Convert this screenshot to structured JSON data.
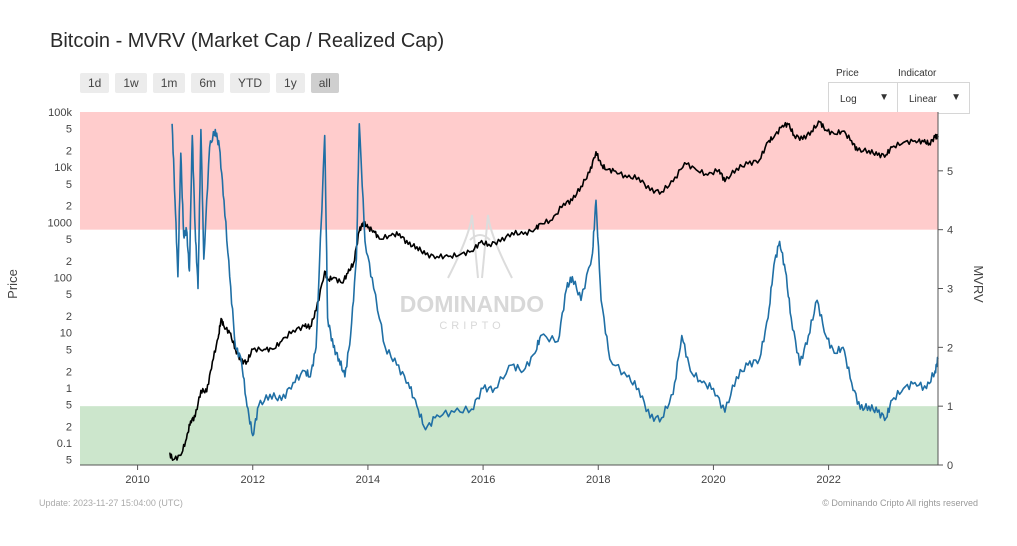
{
  "header": {
    "title": "Bitcoin - MVRV (Market Cap / Realized Cap)"
  },
  "range_buttons": [
    "1d",
    "1w",
    "1m",
    "6m",
    "YTD",
    "1y",
    "all"
  ],
  "active_range": "all",
  "controls": {
    "price": {
      "label": "Price",
      "value": "Log"
    },
    "indicator": {
      "label": "Indicator",
      "value": "Linear"
    }
  },
  "watermark": {
    "name": "DOMINANDO",
    "sub": "CRIPTO"
  },
  "footer": {
    "update": "Update: 2023-11-27 15:04:00 (UTC)",
    "credit": "© Dominando Cripto All rights reserved"
  },
  "colors": {
    "price": "#000000",
    "mvrv": "#1f6fa5",
    "top_band": "#ffcccc",
    "bottom_band": "#cce6cc"
  },
  "chart_data": {
    "type": "line",
    "title": "Bitcoin - MVRV (Market Cap / Realized Cap)",
    "xlabel": "",
    "ylabel_left": "Price",
    "ylabel_right": "MVRV",
    "x_ticks": [
      "2010",
      "2012",
      "2014",
      "2016",
      "2018",
      "2020",
      "2022"
    ],
    "xlim": [
      2009.0,
      2023.9
    ],
    "y_left_scale": "log",
    "y_left_ticks": [
      {
        "v": 100000,
        "t": "100k"
      },
      {
        "v": 50000,
        "t": "5"
      },
      {
        "v": 20000,
        "t": "2"
      },
      {
        "v": 10000,
        "t": "10k"
      },
      {
        "v": 5000,
        "t": "5"
      },
      {
        "v": 2000,
        "t": "2"
      },
      {
        "v": 1000,
        "t": "1000"
      },
      {
        "v": 500,
        "t": "5"
      },
      {
        "v": 200,
        "t": "2"
      },
      {
        "v": 100,
        "t": "100"
      },
      {
        "v": 50,
        "t": "5"
      },
      {
        "v": 20,
        "t": "2"
      },
      {
        "v": 10,
        "t": "10"
      },
      {
        "v": 5,
        "t": "5"
      },
      {
        "v": 2,
        "t": "2"
      },
      {
        "v": 1,
        "t": "1"
      },
      {
        "v": 0.5,
        "t": "5"
      },
      {
        "v": 0.2,
        "t": "2"
      },
      {
        "v": 0.1,
        "t": "0.1"
      },
      {
        "v": 0.05,
        "t": "5"
      }
    ],
    "y_right_ticks": [
      "0",
      "1",
      "2",
      "3",
      "4",
      "5"
    ],
    "y_right_range": [
      0,
      6
    ],
    "bands": [
      {
        "from": 4,
        "to": 6,
        "color": "#ffcccc"
      },
      {
        "from": 0,
        "to": 1,
        "color": "#cce6cc"
      }
    ],
    "series": [
      {
        "name": "Price",
        "axis": "left",
        "points": [
          [
            2010.55,
            0.065
          ],
          [
            2010.62,
            0.05
          ],
          [
            2010.75,
            0.06
          ],
          [
            2010.85,
            0.12
          ],
          [
            2010.92,
            0.25
          ],
          [
            2011.0,
            0.3
          ],
          [
            2011.1,
            0.9
          ],
          [
            2011.2,
            0.85
          ],
          [
            2011.3,
            3
          ],
          [
            2011.4,
            8
          ],
          [
            2011.45,
            18
          ],
          [
            2011.5,
            13
          ],
          [
            2011.6,
            10
          ],
          [
            2011.7,
            5
          ],
          [
            2011.8,
            3
          ],
          [
            2011.9,
            3
          ],
          [
            2012.0,
            5
          ],
          [
            2012.2,
            5
          ],
          [
            2012.35,
            5
          ],
          [
            2012.5,
            7
          ],
          [
            2012.7,
            11
          ],
          [
            2012.9,
            13
          ],
          [
            2013.0,
            13
          ],
          [
            2013.1,
            25
          ],
          [
            2013.25,
            130
          ],
          [
            2013.3,
            90
          ],
          [
            2013.4,
            100
          ],
          [
            2013.55,
            80
          ],
          [
            2013.65,
            120
          ],
          [
            2013.75,
            180
          ],
          [
            2013.85,
            700
          ],
          [
            2013.92,
            1000
          ],
          [
            2014.0,
            800
          ],
          [
            2014.1,
            700
          ],
          [
            2014.2,
            500
          ],
          [
            2014.4,
            580
          ],
          [
            2014.55,
            620
          ],
          [
            2014.7,
            400
          ],
          [
            2014.85,
            360
          ],
          [
            2015.0,
            260
          ],
          [
            2015.2,
            240
          ],
          [
            2015.4,
            240
          ],
          [
            2015.6,
            260
          ],
          [
            2015.8,
            300
          ],
          [
            2015.95,
            430
          ],
          [
            2016.1,
            400
          ],
          [
            2016.3,
            450
          ],
          [
            2016.5,
            650
          ],
          [
            2016.7,
            610
          ],
          [
            2016.9,
            750
          ],
          [
            2017.0,
            950
          ],
          [
            2017.2,
            1100
          ],
          [
            2017.4,
            2200
          ],
          [
            2017.55,
            2500
          ],
          [
            2017.7,
            4500
          ],
          [
            2017.85,
            8000
          ],
          [
            2017.96,
            19000
          ],
          [
            2018.05,
            11000
          ],
          [
            2018.15,
            9000
          ],
          [
            2018.3,
            8500
          ],
          [
            2018.5,
            6500
          ],
          [
            2018.7,
            6500
          ],
          [
            2018.9,
            3800
          ],
          [
            2019.1,
            3600
          ],
          [
            2019.3,
            5500
          ],
          [
            2019.5,
            12000
          ],
          [
            2019.7,
            9000
          ],
          [
            2019.9,
            7200
          ],
          [
            2020.1,
            9000
          ],
          [
            2020.2,
            5500
          ],
          [
            2020.4,
            9500
          ],
          [
            2020.6,
            11500
          ],
          [
            2020.8,
            13500
          ],
          [
            2020.95,
            29000
          ],
          [
            2021.05,
            35000
          ],
          [
            2021.2,
            57000
          ],
          [
            2021.3,
            60000
          ],
          [
            2021.4,
            38000
          ],
          [
            2021.55,
            32000
          ],
          [
            2021.7,
            45000
          ],
          [
            2021.85,
            66000
          ],
          [
            2021.95,
            47000
          ],
          [
            2022.1,
            40000
          ],
          [
            2022.25,
            45000
          ],
          [
            2022.4,
            30000
          ],
          [
            2022.5,
            20000
          ],
          [
            2022.7,
            20000
          ],
          [
            2022.85,
            16500
          ],
          [
            2023.0,
            16800
          ],
          [
            2023.1,
            23000
          ],
          [
            2023.3,
            28000
          ],
          [
            2023.5,
            30000
          ],
          [
            2023.65,
            29000
          ],
          [
            2023.75,
            27000
          ],
          [
            2023.85,
            35000
          ],
          [
            2023.9,
            37000
          ]
        ]
      },
      {
        "name": "MVRV",
        "axis": "right",
        "points": [
          [
            2010.6,
            5.8
          ],
          [
            2010.65,
            4.5
          ],
          [
            2010.7,
            3.2
          ],
          [
            2010.75,
            5.3
          ],
          [
            2010.8,
            3.9
          ],
          [
            2010.85,
            4.0
          ],
          [
            2010.9,
            3.3
          ],
          [
            2010.95,
            5.6
          ],
          [
            2011.0,
            4.0
          ],
          [
            2011.05,
            3.0
          ],
          [
            2011.1,
            5.7
          ],
          [
            2011.15,
            3.5
          ],
          [
            2011.25,
            5.4
          ],
          [
            2011.35,
            5.7
          ],
          [
            2011.42,
            5.4
          ],
          [
            2011.5,
            4.5
          ],
          [
            2011.6,
            3.2
          ],
          [
            2011.7,
            2.0
          ],
          [
            2011.8,
            1.8
          ],
          [
            2011.9,
            1.0
          ],
          [
            2012.0,
            0.5
          ],
          [
            2012.1,
            1.0
          ],
          [
            2012.3,
            1.2
          ],
          [
            2012.5,
            1.1
          ],
          [
            2012.7,
            1.4
          ],
          [
            2012.9,
            1.6
          ],
          [
            2013.0,
            1.5
          ],
          [
            2013.1,
            2.0
          ],
          [
            2013.25,
            5.6
          ],
          [
            2013.3,
            2.5
          ],
          [
            2013.4,
            2.0
          ],
          [
            2013.5,
            1.8
          ],
          [
            2013.6,
            1.5
          ],
          [
            2013.7,
            2.2
          ],
          [
            2013.8,
            3.5
          ],
          [
            2013.85,
            5.8
          ],
          [
            2013.95,
            3.8
          ],
          [
            2014.1,
            3.0
          ],
          [
            2014.3,
            2.0
          ],
          [
            2014.5,
            1.7
          ],
          [
            2014.7,
            1.4
          ],
          [
            2014.85,
            1.0
          ],
          [
            2015.0,
            0.6
          ],
          [
            2015.2,
            0.85
          ],
          [
            2015.5,
            0.9
          ],
          [
            2015.8,
            0.95
          ],
          [
            2016.0,
            1.3
          ],
          [
            2016.2,
            1.3
          ],
          [
            2016.5,
            1.7
          ],
          [
            2016.7,
            1.6
          ],
          [
            2016.9,
            1.9
          ],
          [
            2017.0,
            2.2
          ],
          [
            2017.3,
            2.1
          ],
          [
            2017.45,
            3.0
          ],
          [
            2017.55,
            3.2
          ],
          [
            2017.7,
            2.8
          ],
          [
            2017.9,
            3.6
          ],
          [
            2017.96,
            4.5
          ],
          [
            2018.05,
            2.8
          ],
          [
            2018.2,
            1.8
          ],
          [
            2018.5,
            1.5
          ],
          [
            2018.7,
            1.3
          ],
          [
            2018.9,
            0.8
          ],
          [
            2019.1,
            0.8
          ],
          [
            2019.3,
            1.2
          ],
          [
            2019.45,
            2.2
          ],
          [
            2019.6,
            1.6
          ],
          [
            2019.8,
            1.4
          ],
          [
            2020.0,
            1.3
          ],
          [
            2020.2,
            0.9
          ],
          [
            2020.4,
            1.5
          ],
          [
            2020.6,
            1.7
          ],
          [
            2020.8,
            1.8
          ],
          [
            2020.95,
            2.5
          ],
          [
            2021.05,
            3.4
          ],
          [
            2021.15,
            3.8
          ],
          [
            2021.25,
            3.3
          ],
          [
            2021.35,
            2.5
          ],
          [
            2021.5,
            1.7
          ],
          [
            2021.65,
            2.2
          ],
          [
            2021.8,
            2.8
          ],
          [
            2021.95,
            2.2
          ],
          [
            2022.1,
            1.9
          ],
          [
            2022.25,
            2.0
          ],
          [
            2022.4,
            1.4
          ],
          [
            2022.55,
            0.95
          ],
          [
            2022.7,
            1.0
          ],
          [
            2022.85,
            0.9
          ],
          [
            2023.0,
            0.8
          ],
          [
            2023.1,
            1.1
          ],
          [
            2023.3,
            1.3
          ],
          [
            2023.5,
            1.4
          ],
          [
            2023.7,
            1.3
          ],
          [
            2023.85,
            1.6
          ],
          [
            2023.9,
            1.8
          ]
        ]
      }
    ]
  }
}
